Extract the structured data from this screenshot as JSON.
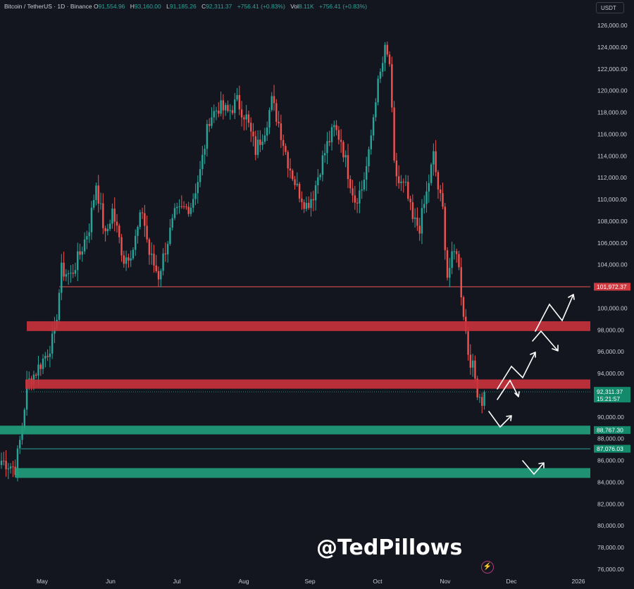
{
  "header": {
    "symbol": "Bitcoin / TetherUS · 1D · Binance",
    "o_label": "O",
    "o_value": "91,554.96",
    "h_label": "H",
    "h_value": "93,160.00",
    "l_label": "L",
    "l_value": "91,185.26",
    "c_label": "C",
    "c_value": "92,311.37",
    "change": "+756.41 (+0.83%)",
    "vol_label": "Vol",
    "vol_value": "8.11K",
    "vol_change": "+756.41 (+0.83%)"
  },
  "currency_label": "USDT",
  "watermark": "@TedPillows",
  "colors": {
    "up": "#26a69a",
    "down": "#ef5350",
    "zone_red": "#c8323c",
    "zone_green": "#1f9d7a",
    "background": "#14161f"
  },
  "chart_data": {
    "type": "candlestick",
    "y_range": [
      75000,
      127000
    ],
    "y_ticks": [
      76000,
      78000,
      80000,
      82000,
      84000,
      86000,
      88000,
      90000,
      92000,
      94000,
      96000,
      98000,
      100000,
      102000,
      104000,
      106000,
      108000,
      110000,
      112000,
      114000,
      116000,
      118000,
      120000,
      122000,
      124000,
      126000
    ],
    "y_tick_labels": [
      "76,000.00",
      "78,000.00",
      "80,000.00",
      "82,000.00",
      "84,000.00",
      "86,000.00",
      "88,000.00",
      "90,000.00",
      "92,000.00",
      "94,000.00",
      "96,000.00",
      "98,000.00",
      "100,000.00",
      "102,000.00",
      "104,000.00",
      "106,000.00",
      "108,000.00",
      "110,000.00",
      "112,000.00",
      "114,000.00",
      "116,000.00",
      "118,000.00",
      "120,000.00",
      "122,000.00",
      "124,000.00",
      "126,000.00"
    ],
    "x_ticks": [
      "May",
      "Jun",
      "Jul",
      "Aug",
      "Sep",
      "Oct",
      "Nov",
      "Dec",
      "2026"
    ],
    "anchors": [
      [
        0,
        86000
      ],
      [
        6,
        85300
      ],
      [
        9,
        89000
      ],
      [
        11,
        93000
      ],
      [
        15,
        94200
      ],
      [
        20,
        96000
      ],
      [
        23,
        97500
      ],
      [
        26,
        103500
      ],
      [
        30,
        103000
      ],
      [
        34,
        105000
      ],
      [
        38,
        107500
      ],
      [
        41,
        111500
      ],
      [
        45,
        106500
      ],
      [
        48,
        109000
      ],
      [
        53,
        104500
      ],
      [
        57,
        105500
      ],
      [
        61,
        109000
      ],
      [
        64,
        105000
      ],
      [
        68,
        103000
      ],
      [
        71,
        105500
      ],
      [
        75,
        108500
      ],
      [
        78,
        109000
      ],
      [
        82,
        109500
      ],
      [
        86,
        112500
      ],
      [
        90,
        117500
      ],
      [
        94,
        118500
      ],
      [
        98,
        118000
      ],
      [
        102,
        119000
      ],
      [
        106,
        117500
      ],
      [
        110,
        114500
      ],
      [
        114,
        116500
      ],
      [
        117,
        119000
      ],
      [
        120,
        117000
      ],
      [
        124,
        113500
      ],
      [
        128,
        111000
      ],
      [
        132,
        109500
      ],
      [
        135,
        110500
      ],
      [
        138,
        113000
      ],
      [
        141,
        115000
      ],
      [
        144,
        116500
      ],
      [
        147,
        115500
      ],
      [
        150,
        112500
      ],
      [
        153,
        110000
      ],
      [
        156,
        111000
      ],
      [
        159,
        114000
      ],
      [
        162,
        119500
      ],
      [
        164,
        121500
      ],
      [
        166,
        123600
      ],
      [
        168,
        122500
      ],
      [
        170,
        113000
      ],
      [
        172,
        111500
      ],
      [
        175,
        111000
      ],
      [
        178,
        108000
      ],
      [
        181,
        107500
      ],
      [
        184,
        110500
      ],
      [
        187,
        114000
      ],
      [
        189,
        111000
      ],
      [
        191,
        109000
      ],
      [
        193,
        103000
      ],
      [
        195,
        104500
      ],
      [
        197,
        105500
      ],
      [
        199,
        101500
      ],
      [
        202,
        96000
      ],
      [
        204,
        94500
      ],
      [
        206,
        92500
      ],
      [
        208,
        91500
      ],
      [
        209,
        92311
      ]
    ],
    "levels": [
      {
        "type": "line",
        "price": 101972.37,
        "label": "101,972.37",
        "color": "#ef5350"
      },
      {
        "type": "zone",
        "low": 97900,
        "high": 98800,
        "color": "#c8323c"
      },
      {
        "type": "zone",
        "low": 92600,
        "high": 93450,
        "color": "#c8323c"
      },
      {
        "type": "zone",
        "low": 88400,
        "high": 89200,
        "label": "88,767.30",
        "color": "#1f9d7a"
      },
      {
        "type": "line",
        "price": 87076.03,
        "label": "87,076.03",
        "color": "#26a69a"
      },
      {
        "type": "zone",
        "low": 84400,
        "high": 85300,
        "color": "#1f9d7a"
      }
    ],
    "last_price": {
      "price": 92311.37,
      "label": "92,311.37",
      "countdown": "15:21:57"
    },
    "extra_axis_labels": [
      "88,000.00"
    ]
  }
}
